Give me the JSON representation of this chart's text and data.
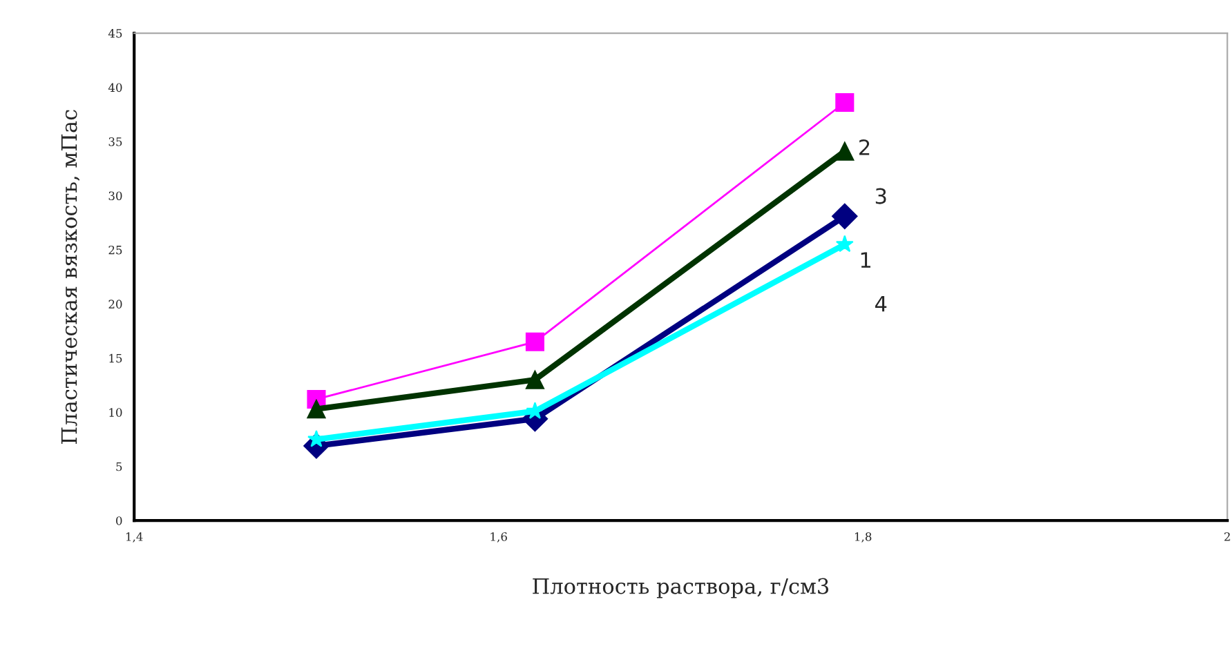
{
  "chart_data": {
    "type": "line",
    "xlabel": "Плотность раствора, г/см3",
    "ylabel": "Пластическая вязкость, мПас",
    "x": [
      1.5,
      1.62,
      1.79
    ],
    "series": [
      {
        "color": "#ff00ff",
        "values": [
          11.2,
          16.5,
          38.6
        ],
        "marker": "square"
      },
      {
        "color": "#003300",
        "values": [
          10.3,
          13.0,
          34.1
        ],
        "marker": "triangle"
      },
      {
        "color": "#000080",
        "values": [
          6.9,
          9.4,
          28.1
        ],
        "marker": "diamond"
      },
      {
        "color": "#00ffff",
        "values": [
          7.5,
          10.1,
          25.5
        ],
        "marker": "star"
      }
    ],
    "xlim": [
      1.4,
      2.0
    ],
    "xticks": [
      {
        "value": 1.4,
        "label": "1,4"
      },
      {
        "value": 1.6,
        "label": "1,6"
      },
      {
        "value": 1.8,
        "label": "1,8"
      },
      2
    ],
    "ylim": [
      0,
      45
    ],
    "yticks": [
      0,
      5,
      10,
      15,
      20,
      25,
      30,
      35,
      40,
      45
    ],
    "grid": false,
    "legend": false,
    "annotations": [
      "2",
      "3",
      "1",
      "4"
    ]
  }
}
